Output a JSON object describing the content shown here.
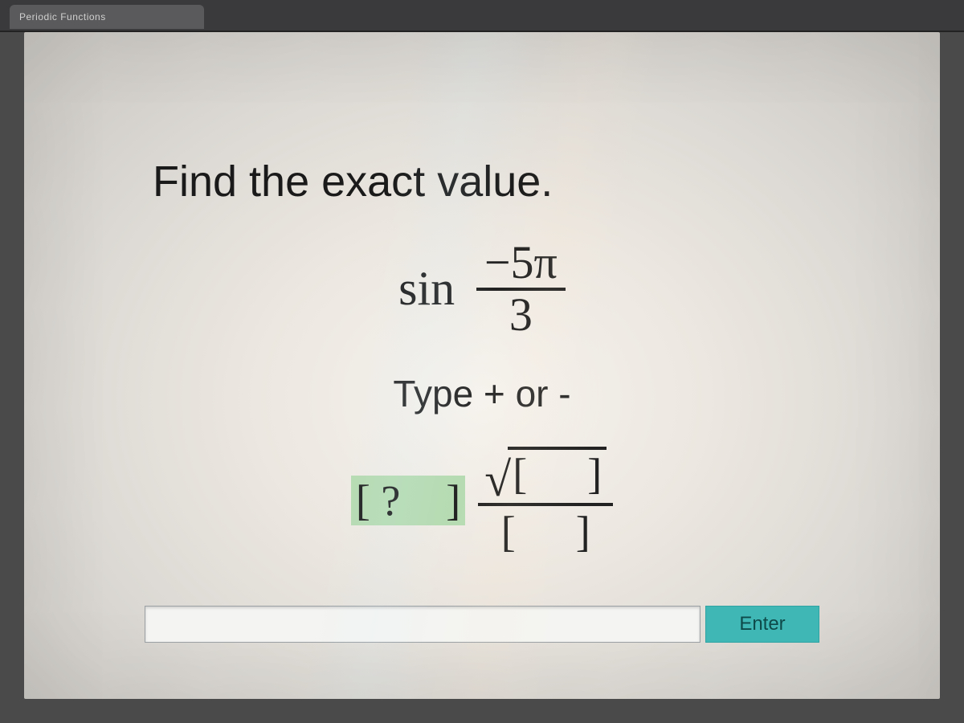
{
  "tab": {
    "title": "Periodic Functions"
  },
  "problem": {
    "prompt": "Find the exact value.",
    "function": "sin",
    "arg_numerator": "−5π",
    "arg_denominator": "3"
  },
  "hint": "Type + or -",
  "answer_template": {
    "sign_slot": "?",
    "radicand_slot": "",
    "denominator_slot": ""
  },
  "entry": {
    "value": "",
    "placeholder": ""
  },
  "enter_label": "Enter",
  "colors": {
    "page_bg_center": "#f6f3ee",
    "page_bg_edge": "#c8c5c0",
    "text": "#1a1a1a",
    "active_slot_bg": "#b6dbb2",
    "enter_btn_bg": "#3fb8b5",
    "enter_btn_text": "#0e4a4a",
    "input_border": "#9aa0a4"
  },
  "fontsizes_pt": {
    "prompt": 40,
    "expression": 44,
    "hint": 34,
    "slots": 40,
    "enter_button": 18
  }
}
